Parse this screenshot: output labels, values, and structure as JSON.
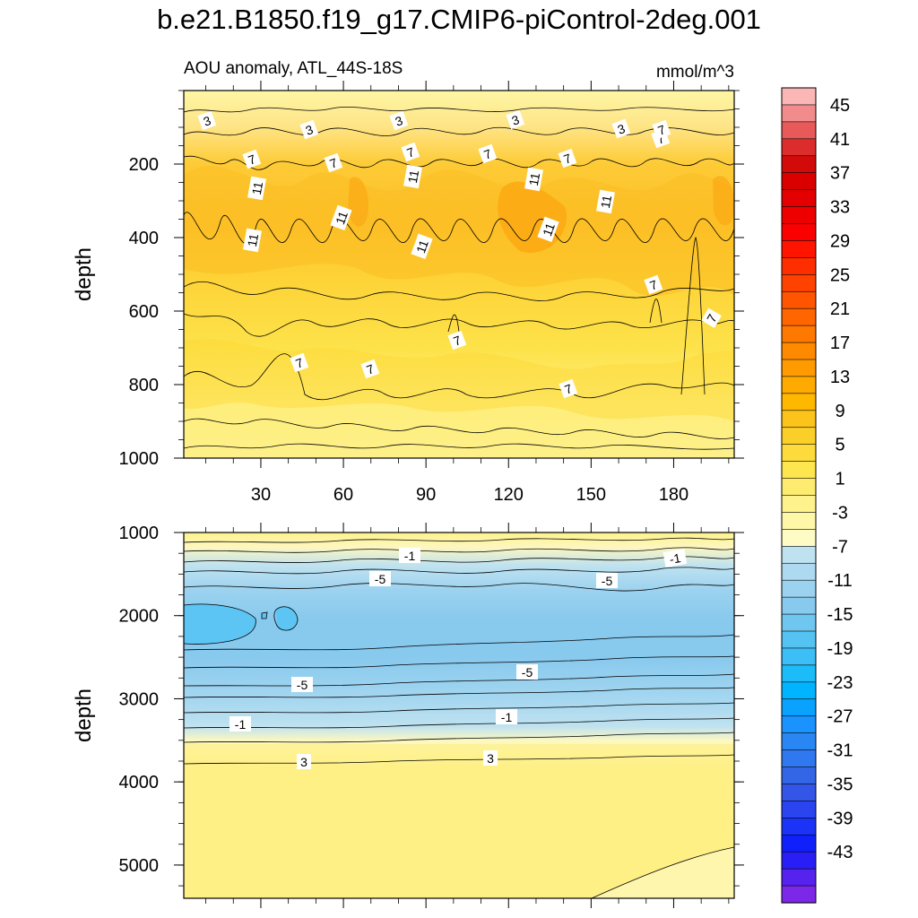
{
  "title": "b.e21.B1850.f19_g17.CMIP6-piControl-2deg.001",
  "chart_data": {
    "type": "contour",
    "variable": "AOU anomaly, ATL_44S-18S",
    "units": "mmol/m^3",
    "xticks": [
      30,
      60,
      90,
      120,
      150,
      180
    ],
    "xlim": [
      2,
      202
    ],
    "ylabel": "depth",
    "colorbar": {
      "levels": [
        -45,
        -43,
        -41,
        -39,
        -37,
        -35,
        -33,
        -31,
        -29,
        -27,
        -25,
        -23,
        -21,
        -19,
        -17,
        -15,
        -13,
        -11,
        -9,
        -7,
        -5,
        -3,
        -1,
        1,
        3,
        5,
        7,
        9,
        11,
        13,
        15,
        17,
        19,
        21,
        23,
        25,
        27,
        29,
        31,
        33,
        35,
        37,
        39,
        41,
        43,
        45
      ],
      "labels": [
        "45",
        "41",
        "37",
        "33",
        "29",
        "25",
        "21",
        "17",
        "13",
        "9",
        "5",
        "1",
        "-3",
        "-7",
        "-11",
        "-15",
        "-19",
        "-23",
        "-27",
        "-31",
        "-35",
        "-39",
        "-43"
      ],
      "colors": [
        "#fbb6b6",
        "#f28c8c",
        "#e85a5a",
        "#dd2c2c",
        "#d20a0a",
        "#db0000",
        "#e40000",
        "#ee0000",
        "#fa0000",
        "#ff1400",
        "#ff2e00",
        "#ff4200",
        "#ff5400",
        "#ff6600",
        "#ff7800",
        "#ff8a00",
        "#ff9a00",
        "#ffaa00",
        "#ffb800",
        "#fcc31a",
        "#fbcf2a",
        "#fddb3c",
        "#fde64e",
        "#fdec70",
        "#fef28c",
        "#fff7a8",
        "#fefcc4",
        "#bfe2f0",
        "#addaf0",
        "#9bd2ef",
        "#88c9ee",
        "#6fc6ef",
        "#55c3f2",
        "#3cbef6",
        "#1cbcf9",
        "#00b4ff",
        "#0aa2ff",
        "#1a93ff",
        "#2a86f3",
        "#2f78ef",
        "#3366e6",
        "#3355e8",
        "#2a44f0",
        "#1a33f6",
        "#1020fb",
        "#2a1ef6",
        "#5522ee",
        "#7d28e8"
      ]
    },
    "top_panel": {
      "ylim": [
        0,
        1000
      ],
      "yticks": [
        200,
        400,
        600,
        800,
        1000
      ],
      "contour_labels": [
        "3",
        "3",
        "3",
        "3",
        "3",
        "7",
        "7",
        "7",
        "7",
        "7",
        "7",
        "7",
        "11",
        "11",
        "11",
        "11",
        "11",
        "11",
        "11",
        "11",
        "7",
        "7",
        "7",
        "7",
        "7",
        "7"
      ]
    },
    "bottom_panel": {
      "ylim": [
        1000,
        5400
      ],
      "yticks": [
        1000,
        2000,
        3000,
        4000,
        5000
      ],
      "contour_labels": [
        "-1",
        "-1",
        "-5",
        "-5",
        "-5",
        "-5",
        "-1",
        "-1",
        "3",
        "3"
      ]
    }
  }
}
